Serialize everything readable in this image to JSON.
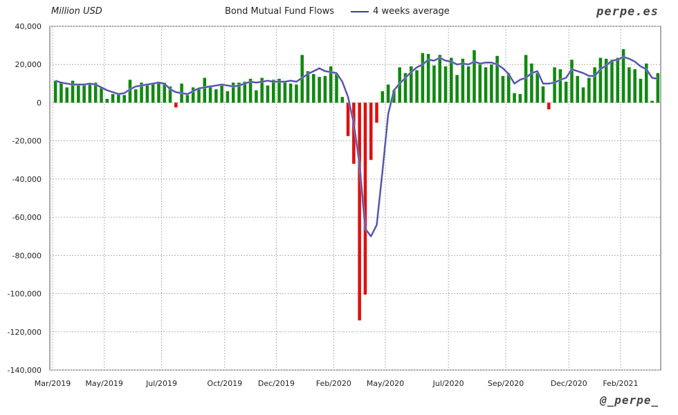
{
  "header": {
    "unit_label": "Million USD",
    "brand": "perpe.es",
    "handle": "@_perpe_"
  },
  "chart_data": {
    "type": "bar",
    "title": "",
    "ylabel": "Million USD",
    "ylim": [
      -140000,
      40000
    ],
    "yticks": [
      40000,
      20000,
      0,
      -20000,
      -40000,
      -60000,
      -80000,
      -100000,
      -120000,
      -140000
    ],
    "ytick_labels": [
      "40,000",
      "20,000",
      "0",
      "-20,000",
      "-40,000",
      "-60,000",
      "-80,000",
      "-100,000",
      "-120,000",
      "-140,000"
    ],
    "x_tick_labels": [
      "Mar/2019",
      "May/2019",
      "Jul/2019",
      "Oct/2019",
      "Dec/2019",
      "Feb/2020",
      "May/2020",
      "Jul/2020",
      "Sep/2020",
      "Dec/2020",
      "Feb/2021"
    ],
    "x_tick_weeks": [
      0,
      9,
      19,
      30,
      39,
      49,
      58,
      69,
      79,
      90,
      99
    ],
    "positive_color": "#118811",
    "negative_color": "#dd1111",
    "avg_color": "#3b3b9a",
    "grid": true,
    "series": [
      {
        "name": "Bond Mutual Fund Flows",
        "values": [
          11500,
          11000,
          8000,
          11500,
          9000,
          9500,
          10000,
          10500,
          8000,
          2000,
          4500,
          5000,
          4000,
          12000,
          7000,
          10500,
          10000,
          10000,
          11000,
          10500,
          8500,
          -2500,
          10000,
          4000,
          8000,
          7500,
          13000,
          9000,
          7000,
          9000,
          6000,
          10500,
          10500,
          11000,
          12500,
          6500,
          13000,
          9000,
          12000,
          12500,
          11000,
          10000,
          9500,
          25000,
          16500,
          15000,
          13500,
          14000,
          19000,
          15000,
          3000,
          -17500,
          -32000,
          -114000,
          -100500,
          -30000,
          -10500,
          6000,
          9500,
          6500,
          18500,
          15500,
          19000,
          17000,
          26000,
          25500,
          19500,
          25000,
          19000,
          23500,
          14500,
          23000,
          19000,
          27500,
          20000,
          18500,
          20000,
          24500,
          14000,
          15500,
          5000,
          4500,
          25000,
          20500,
          15500,
          8500,
          -3500,
          18500,
          17500,
          11000,
          22500,
          14000,
          8000,
          13000,
          18500,
          23500,
          23000,
          22500,
          23500,
          28000,
          18500,
          17500,
          12500,
          20500,
          1000,
          15500
        ]
      },
      {
        "name": "4 weeks average",
        "values": [
          11500,
          10500,
          10000,
          9500,
          9500,
          9500,
          10000,
          9500,
          8000,
          6500,
          5500,
          4500,
          5000,
          7000,
          8500,
          9000,
          9500,
          10000,
          10500,
          10000,
          7000,
          5500,
          5000,
          4500,
          6000,
          7500,
          8000,
          8500,
          9000,
          9500,
          9000,
          8500,
          9000,
          10000,
          11000,
          10500,
          11000,
          11500,
          11000,
          11000,
          11000,
          11500,
          11000,
          13000,
          15000,
          16500,
          18000,
          16500,
          16000,
          15500,
          11000,
          3000,
          -11000,
          -32000,
          -66000,
          -70000,
          -64000,
          -36000,
          -6000,
          6500,
          10000,
          13000,
          16000,
          18500,
          20000,
          22500,
          22000,
          23500,
          22000,
          21500,
          20000,
          20500,
          20000,
          21500,
          20500,
          21000,
          21000,
          20000,
          18000,
          15000,
          10000,
          12000,
          13000,
          15500,
          16500,
          10000,
          10000,
          10500,
          12000,
          13000,
          17500,
          16500,
          15500,
          14000,
          14000,
          17500,
          19500,
          22000,
          22500,
          24000,
          23000,
          21500,
          19000,
          17500,
          13000,
          12500
        ]
      }
    ]
  }
}
